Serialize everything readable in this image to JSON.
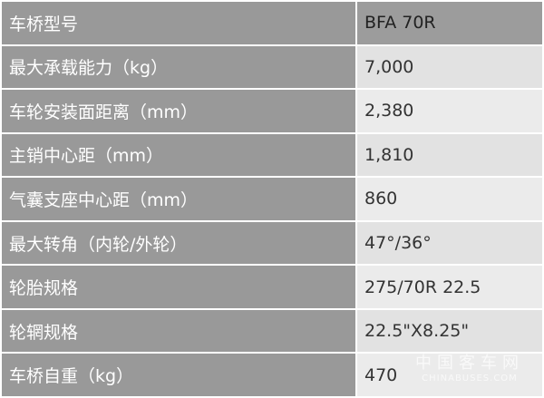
{
  "table": {
    "rows": [
      {
        "label": "车桥型号",
        "value": "BFA 70R"
      },
      {
        "label": "最大承载能力（kg）",
        "value": "7,000"
      },
      {
        "label": "车轮安装面距离（mm）",
        "value": "2,380"
      },
      {
        "label": "主销中心距（mm）",
        "value": "1,810"
      },
      {
        "label": "气囊支座中心距（mm）",
        "value": "860"
      },
      {
        "label": "最大转角（内轮/外轮）",
        "value": "47°/36°"
      },
      {
        "label": "轮胎规格",
        "value": "275/70R 22.5"
      },
      {
        "label": "轮辋规格",
        "value": "22.5\"X8.25\""
      },
      {
        "label": "车桥自重（kg）",
        "value": "470"
      }
    ]
  },
  "watermark": {
    "cn": "中国客车网",
    "en": "CHINABUSES.COM"
  }
}
